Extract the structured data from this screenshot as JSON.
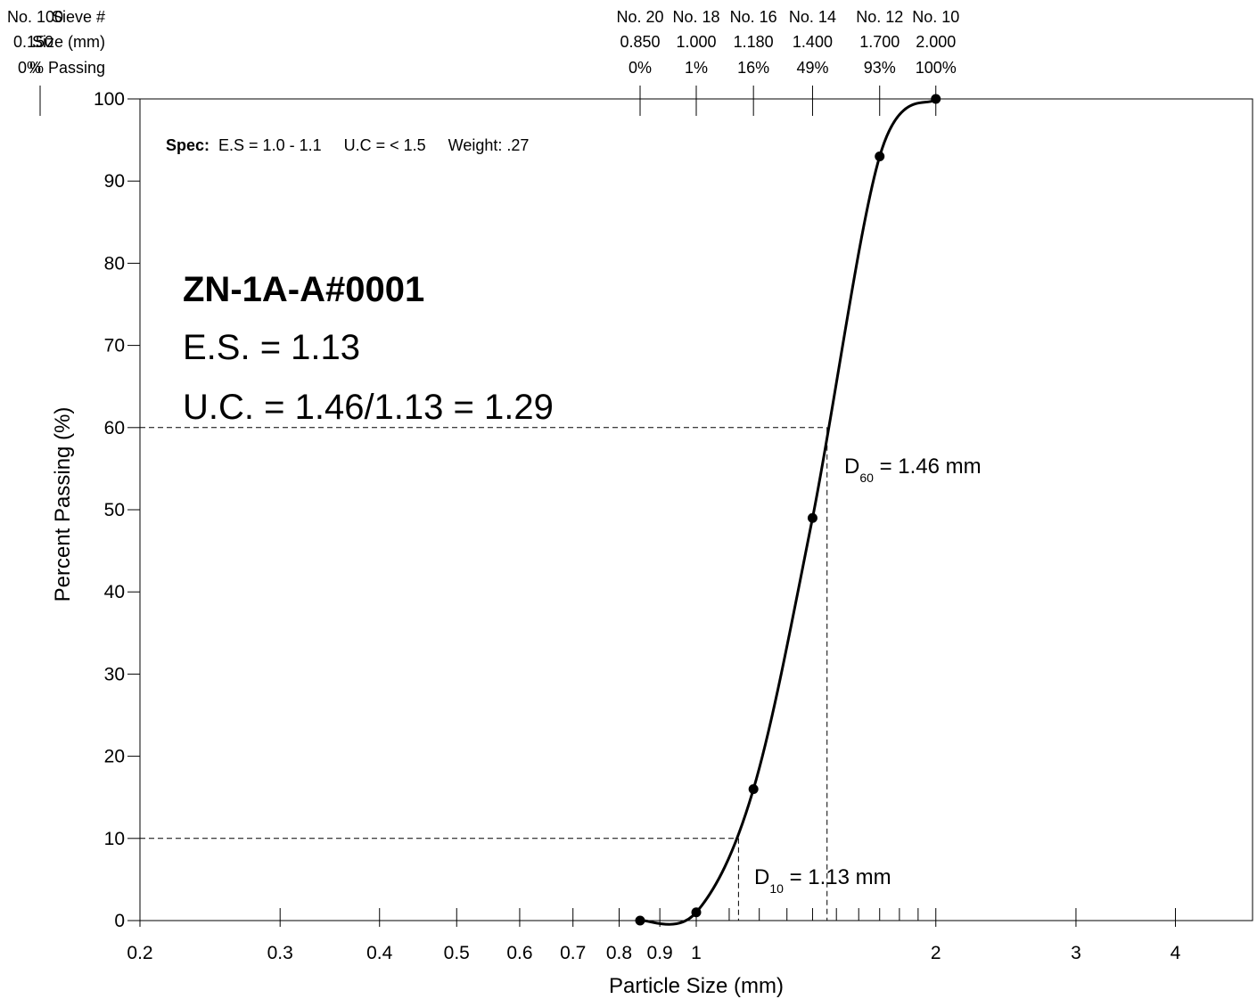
{
  "chart_data": {
    "type": "line",
    "title": "",
    "xlabel": "Particle Size (mm)",
    "ylabel": "Percent Passing (%)",
    "x_scale": "log",
    "xlim": [
      0.2,
      5
    ],
    "ylim": [
      0,
      100
    ],
    "x_ticks": [
      {
        "value": 0.2,
        "label": "0.2"
      },
      {
        "value": 0.3,
        "label": "0.3"
      },
      {
        "value": 0.4,
        "label": "0.4"
      },
      {
        "value": 0.5,
        "label": "0.5"
      },
      {
        "value": 0.6,
        "label": "0.6"
      },
      {
        "value": 0.7,
        "label": "0.7"
      },
      {
        "value": 0.8,
        "label": "0.8"
      },
      {
        "value": 0.9,
        "label": "0.9"
      },
      {
        "value": 1,
        "label": "1"
      },
      {
        "value": 2,
        "label": "2"
      },
      {
        "value": 3,
        "label": "3"
      },
      {
        "value": 4,
        "label": "4"
      }
    ],
    "x_minor_ticks": [
      1.1,
      1.2,
      1.3,
      1.4,
      1.5,
      1.6,
      1.7,
      1.8,
      1.9
    ],
    "y_ticks": [
      {
        "value": 0,
        "label": "0"
      },
      {
        "value": 10,
        "label": "10"
      },
      {
        "value": 20,
        "label": "20"
      },
      {
        "value": 30,
        "label": "30"
      },
      {
        "value": 40,
        "label": "40"
      },
      {
        "value": 50,
        "label": "50"
      },
      {
        "value": 60,
        "label": "60"
      },
      {
        "value": 70,
        "label": "70"
      },
      {
        "value": 80,
        "label": "80"
      },
      {
        "value": 90,
        "label": "90"
      },
      {
        "value": 100,
        "label": "100"
      }
    ],
    "grid": false,
    "series": [
      {
        "x": [
          0.85,
          1.0,
          1.18,
          1.4,
          1.7,
          2.0
        ],
        "y": [
          0,
          1,
          16,
          49,
          93,
          100
        ]
      }
    ],
    "top_header": {
      "sieve_label": "Sieve #",
      "size_label": "Size (mm)",
      "passing_label": "% Passing",
      "left_sieve": "No. 100",
      "left_size": "0.150",
      "left_passing": "0%"
    },
    "top_sieves": [
      {
        "sieve": "No. 20",
        "size": "0.850",
        "passing": "0%",
        "x": 0.85
      },
      {
        "sieve": "No. 18",
        "size": "1.000",
        "passing": "1%",
        "x": 1.0
      },
      {
        "sieve": "No. 16",
        "size": "1.180",
        "passing": "16%",
        "x": 1.18
      },
      {
        "sieve": "No. 14",
        "size": "1.400",
        "passing": "49%",
        "x": 1.4
      },
      {
        "sieve": "No. 12",
        "size": "1.700",
        "passing": "93%",
        "x": 1.7
      },
      {
        "sieve": "No. 10",
        "size": "2.000",
        "passing": "100%",
        "x": 2.0
      }
    ],
    "spec": {
      "label": "Spec:",
      "text": "E.S = 1.0 - 1.1     U.C = < 1.5     Weight: .27"
    },
    "annotations": {
      "sample_id": "ZN-1A-A#0001",
      "es": "E.S. = 1.13",
      "uc": "U.C. = 1.46/1.13 = 1.29"
    },
    "reference_lines": [
      {
        "name": "D10",
        "y": 10,
        "x": 1.13,
        "prefix": "D",
        "subscript": "10",
        "text": " = 1.13 mm"
      },
      {
        "name": "D60",
        "y": 60,
        "x": 1.46,
        "prefix": "D",
        "subscript": "60",
        "text": " = 1.46 mm"
      }
    ]
  }
}
